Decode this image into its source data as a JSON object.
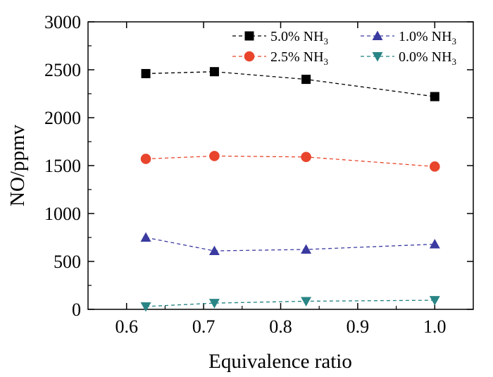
{
  "chart_data": {
    "type": "line",
    "title": "",
    "xlabel": "Equivalence ratio",
    "ylabel": "NO/ppmv",
    "xlim": [
      0.55,
      1.05
    ],
    "ylim": [
      0,
      3000
    ],
    "x_ticks": [
      0.6,
      0.7,
      0.8,
      0.9,
      1.0
    ],
    "x_tick_labels": [
      "0.6",
      "0.7",
      "0.8",
      "0.9",
      "1.0"
    ],
    "y_ticks": [
      0,
      500,
      1000,
      1500,
      2000,
      2500,
      3000
    ],
    "y_tick_labels": [
      "0",
      "500",
      "1000",
      "1500",
      "2000",
      "2500",
      "3000"
    ],
    "grid": false,
    "legend_position": "top",
    "x": [
      0.625,
      0.714,
      0.833,
      1.0
    ],
    "series": [
      {
        "name_main": "5.0% NH",
        "name_sub": "3",
        "marker": "square",
        "color": "#000000",
        "marker_color": "#000000",
        "values": [
          2460,
          2480,
          2400,
          2220
        ]
      },
      {
        "name_main": "2.5% NH",
        "name_sub": "3",
        "marker": "circle",
        "color": "#e8452c",
        "marker_color": "#e8452c",
        "values": [
          1570,
          1600,
          1590,
          1490
        ]
      },
      {
        "name_main": "1.0% NH",
        "name_sub": "3",
        "marker": "triangle-up",
        "color": "#3a3aa0",
        "marker_color": "#3a3aa0",
        "values": [
          750,
          610,
          625,
          680
        ]
      },
      {
        "name_main": "0.0% NH",
        "name_sub": "3",
        "marker": "triangle-down",
        "color": "#1e8080",
        "marker_color": "#2a8585",
        "values": [
          30,
          65,
          85,
          95
        ]
      }
    ]
  }
}
